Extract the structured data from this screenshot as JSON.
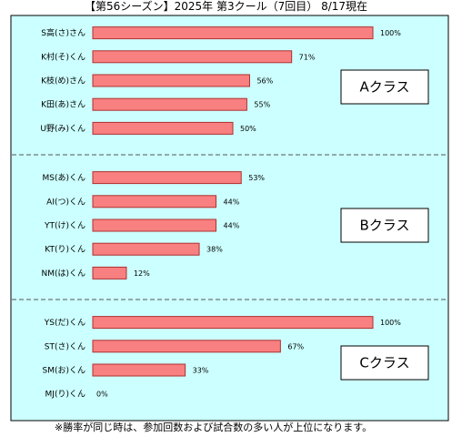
{
  "title": "【第56シーズン】2025年  第3クール（7回目）  8/17現在",
  "footnote": "※勝率が同じ時は、参加回数および試合数の多い人が上位になります。",
  "colors": {
    "plot_bg": "#ccffff",
    "bar_fill": "#f88080",
    "bar_stroke": "#b03030",
    "separator": "#555555"
  },
  "chart_data": {
    "type": "bar",
    "orientation": "horizontal",
    "xlim": [
      0,
      100
    ],
    "value_suffix": "%",
    "groups": [
      {
        "label": "Aクラス",
        "categories": [
          "S高(さ)さん",
          "K村(そ)くん",
          "K枝(め)さん",
          "K田(あ)さん",
          "U野(み)くん"
        ],
        "values": [
          100,
          71,
          56,
          55,
          50
        ]
      },
      {
        "label": "Bクラス",
        "categories": [
          "MS(あ)くん",
          "AI(つ)くん",
          "YT(け)くん",
          "KT(り)くん",
          "NM(は)くん"
        ],
        "values": [
          53,
          44,
          44,
          38,
          12
        ]
      },
      {
        "label": "Cクラス",
        "categories": [
          "YS(だ)くん",
          "ST(さ)くん",
          "SM(お)くん",
          "MJ(り)くん"
        ],
        "values": [
          100,
          67,
          33,
          0
        ]
      }
    ]
  }
}
